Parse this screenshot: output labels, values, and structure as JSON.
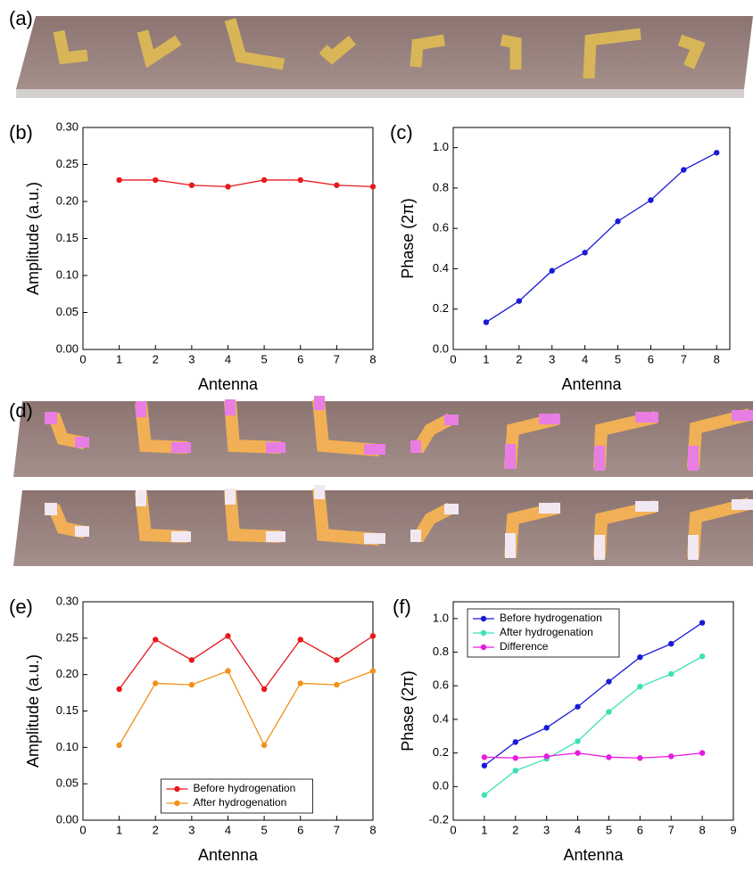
{
  "figure_labels": [
    "(a)",
    "(d)"
  ],
  "chart_data": [
    {
      "type": "line",
      "panel": "(b)",
      "xlabel": "Antenna",
      "ylabel": "Amplitude (a.u.)",
      "x": [
        1,
        2,
        3,
        4,
        5,
        6,
        7,
        8
      ],
      "series": [
        {
          "name": null,
          "color": "#e8191c",
          "values": [
            0.229,
            0.229,
            0.222,
            0.22,
            0.229,
            0.229,
            0.222,
            0.22
          ]
        }
      ],
      "xlim": [
        0,
        8
      ],
      "xticks": [
        0,
        1,
        2,
        3,
        4,
        5,
        6,
        7,
        8
      ],
      "ylim": [
        0,
        0.3
      ],
      "yticks": [
        {
          "value": 0,
          "label": "0.00"
        },
        0.05,
        {
          "value": 0.1,
          "label": "0.10"
        },
        0.15,
        {
          "value": 0.2,
          "label": "0.20"
        },
        0.25,
        {
          "value": 0.3,
          "label": "0.30"
        }
      ]
    },
    {
      "type": "line",
      "panel": "(c)",
      "xlabel": "Antenna",
      "ylabel": "Phase (2π)",
      "x": [
        1,
        2,
        3,
        4,
        5,
        6,
        7,
        8
      ],
      "series": [
        {
          "name": null,
          "color": "#1a1ad6",
          "values": [
            0.135,
            0.24,
            0.39,
            0.48,
            0.635,
            0.74,
            0.89,
            0.975
          ]
        }
      ],
      "xlim": [
        0,
        8.4
      ],
      "xticks": [
        0,
        1,
        2,
        3,
        4,
        5,
        6,
        7,
        8
      ],
      "ylim": [
        0,
        1.1
      ],
      "yticks": [
        {
          "value": 0,
          "label": "0.0"
        },
        0.2,
        0.4,
        0.6,
        0.8,
        {
          "value": 1,
          "label": "1.0"
        }
      ]
    },
    {
      "type": "line",
      "panel": "(e)",
      "xlabel": "Antenna",
      "ylabel": "Amplitude (a.u.)",
      "x": [
        1,
        2,
        3,
        4,
        5,
        6,
        7,
        8
      ],
      "series": [
        {
          "name": "Before hydrogenation",
          "color": "#e8191c",
          "values": [
            0.18,
            0.248,
            0.22,
            0.253,
            0.18,
            0.248,
            0.22,
            0.253
          ]
        },
        {
          "name": "After hydrogenation",
          "color": "#f39019",
          "values": [
            0.103,
            0.188,
            0.186,
            0.205,
            0.103,
            0.188,
            0.186,
            0.205
          ]
        }
      ],
      "legend": "lower center",
      "xlim": [
        0,
        8
      ],
      "xticks": [
        0,
        1,
        2,
        3,
        4,
        5,
        6,
        7,
        8
      ],
      "ylim": [
        0,
        0.3
      ],
      "yticks": [
        {
          "value": 0,
          "label": "0.00"
        },
        0.05,
        {
          "value": 0.1,
          "label": "0.10"
        },
        0.15,
        {
          "value": 0.2,
          "label": "0.20"
        },
        0.25,
        {
          "value": 0.3,
          "label": "0.30"
        }
      ]
    },
    {
      "type": "line",
      "panel": "(f)",
      "xlabel": "Antenna",
      "ylabel": "Phase (2π)",
      "x": [
        1,
        2,
        3,
        4,
        5,
        6,
        7,
        8
      ],
      "series": [
        {
          "name": "Before hydrogenation",
          "color": "#1a1ad6",
          "values": [
            0.125,
            0.265,
            0.35,
            0.475,
            0.625,
            0.77,
            0.85,
            0.975
          ]
        },
        {
          "name": "After hydrogenation",
          "color": "#3de0b4",
          "values": [
            -0.05,
            0.095,
            0.165,
            0.27,
            0.445,
            0.595,
            0.67,
            0.775
          ]
        },
        {
          "name": "Difference",
          "color": "#e81ae0",
          "values": [
            0.175,
            0.17,
            0.18,
            0.2,
            0.175,
            0.17,
            0.18,
            0.2
          ]
        }
      ],
      "legend": "upper left",
      "xlim": [
        0,
        9
      ],
      "xticks": [
        0,
        1,
        2,
        3,
        4,
        5,
        6,
        7,
        8,
        9
      ],
      "ylim": [
        -0.2,
        1.1
      ],
      "yticks": [
        {
          "value": -0.2,
          "label": "-0.2"
        },
        {
          "value": 0,
          "label": "0.0"
        },
        0.2,
        0.4,
        0.6,
        0.8,
        {
          "value": 1,
          "label": "1.0"
        }
      ]
    }
  ]
}
